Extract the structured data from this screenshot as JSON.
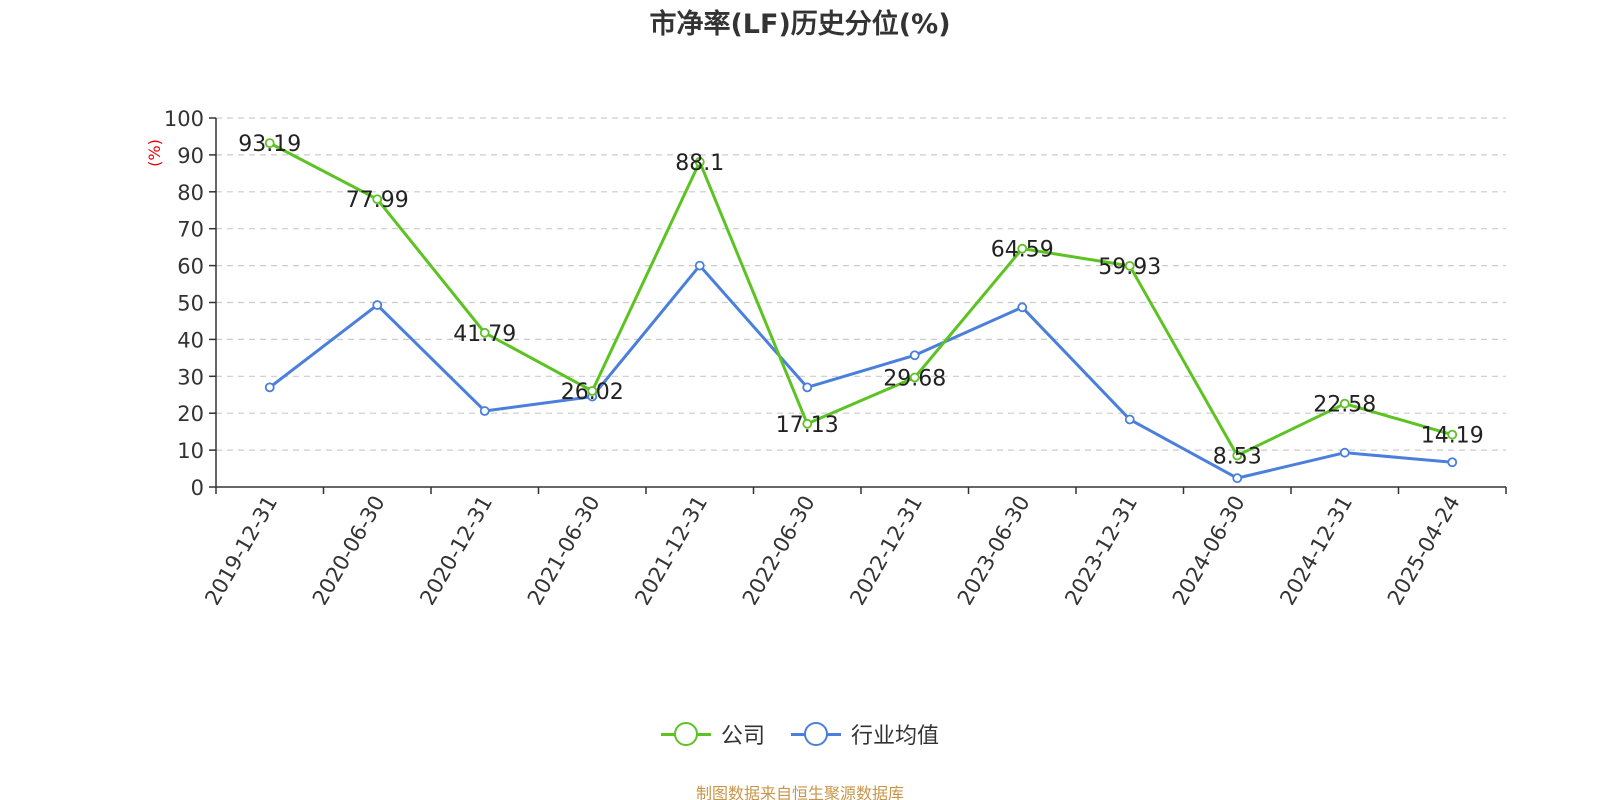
{
  "chart_data": {
    "type": "line",
    "title": "市净率(LF)历史分位(%)",
    "ylabel": "(%)",
    "xlabel": "",
    "ylim": [
      0,
      100
    ],
    "yticks": [
      0,
      10,
      20,
      30,
      40,
      50,
      60,
      70,
      80,
      90,
      100
    ],
    "grid": true,
    "legend_position": "bottom",
    "categories": [
      "2019-12-31",
      "2020-06-30",
      "2020-12-31",
      "2021-06-30",
      "2021-12-31",
      "2022-06-30",
      "2022-12-31",
      "2023-06-30",
      "2023-12-31",
      "2024-06-30",
      "2024-12-31",
      "2025-04-24"
    ],
    "series": [
      {
        "name": "公司",
        "color": "#5cc323",
        "values": [
          93.19,
          77.99,
          41.79,
          26.02,
          88.1,
          17.13,
          29.68,
          64.59,
          59.93,
          8.53,
          22.58,
          14.19
        ],
        "data_labels": [
          "93.19",
          "77.99",
          "41.79",
          "26.02",
          "88.1",
          "17.13",
          "29.68",
          "64.59",
          "59.93",
          "8.53",
          "22.58",
          "14.19"
        ]
      },
      {
        "name": "行业均值",
        "color": "#4a7fdc",
        "values": [
          27,
          49.3,
          20.6,
          24.5,
          60,
          27,
          35.7,
          48.7,
          18.3,
          2.4,
          9.3,
          6.7
        ]
      }
    ]
  },
  "footer": {
    "source": "制图数据来自恒生聚源数据库"
  }
}
